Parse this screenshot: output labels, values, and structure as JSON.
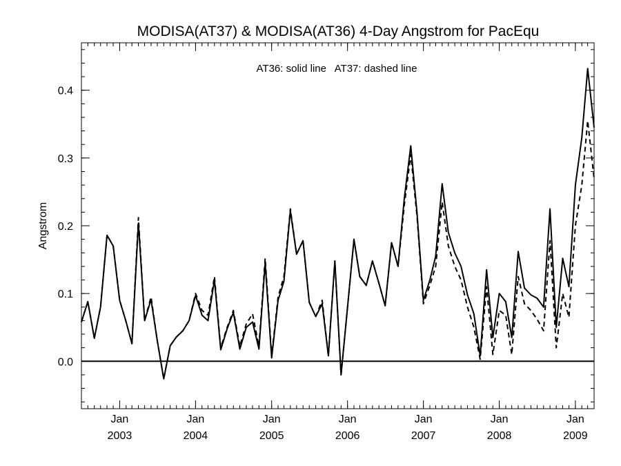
{
  "chart_data": {
    "type": "line",
    "title": "MODISA(AT37) & MODISA(AT36) 4-Day Angstrom for PacEqu",
    "annotation": "AT36: solid line   AT37: dashed line",
    "xlabel": "",
    "ylabel": "Angstrom",
    "xlim": [
      "2002-07-01",
      "2009-04-01"
    ],
    "ylim": [
      -0.07,
      0.47
    ],
    "yticks": [
      0.0,
      0.1,
      0.2,
      0.3,
      0.4
    ],
    "ytick_labels": [
      "0.0",
      "0.1",
      "0.2",
      "0.3",
      "0.4"
    ],
    "xticks": [
      {
        "date": "2003-01-01",
        "month": "Jan",
        "year": "2003"
      },
      {
        "date": "2004-01-01",
        "month": "Jan",
        "year": "2004"
      },
      {
        "date": "2005-01-01",
        "month": "Jan",
        "year": "2005"
      },
      {
        "date": "2006-01-01",
        "month": "Jan",
        "year": "2006"
      },
      {
        "date": "2007-01-01",
        "month": "Jan",
        "year": "2007"
      },
      {
        "date": "2008-01-01",
        "month": "Jan",
        "year": "2008"
      },
      {
        "date": "2009-01-01",
        "month": "Jan",
        "year": "2009"
      }
    ],
    "zero_line": true,
    "grid": false,
    "series": [
      {
        "style": "solid",
        "color": "#000000",
        "points": [
          [
            "2002-07-01",
            0.058
          ],
          [
            "2002-08-01",
            0.088
          ],
          [
            "2002-09-01",
            0.034
          ],
          [
            "2002-10-01",
            0.08
          ],
          [
            "2002-11-01",
            0.186
          ],
          [
            "2002-12-01",
            0.17
          ],
          [
            "2003-01-01",
            0.09
          ],
          [
            "2003-02-01",
            0.058
          ],
          [
            "2003-03-01",
            0.026
          ],
          [
            "2003-04-01",
            0.204
          ],
          [
            "2003-05-01",
            0.06
          ],
          [
            "2003-06-01",
            0.091
          ],
          [
            "2003-07-01",
            0.03
          ],
          [
            "2003-08-01",
            -0.026
          ],
          [
            "2003-09-01",
            0.023
          ],
          [
            "2003-10-01",
            0.036
          ],
          [
            "2003-11-01",
            0.045
          ],
          [
            "2003-12-01",
            0.06
          ],
          [
            "2004-01-01",
            0.097
          ],
          [
            "2004-02-01",
            0.068
          ],
          [
            "2004-03-01",
            0.06
          ],
          [
            "2004-04-01",
            0.12
          ],
          [
            "2004-05-01",
            0.017
          ],
          [
            "2004-06-01",
            0.048
          ],
          [
            "2004-07-01",
            0.072
          ],
          [
            "2004-08-01",
            0.018
          ],
          [
            "2004-09-01",
            0.05
          ],
          [
            "2004-10-01",
            0.058
          ],
          [
            "2004-11-01",
            0.018
          ],
          [
            "2004-12-01",
            0.145
          ],
          [
            "2005-01-01",
            0.005
          ],
          [
            "2005-02-01",
            0.09
          ],
          [
            "2005-03-01",
            0.118
          ],
          [
            "2005-04-01",
            0.222
          ],
          [
            "2005-05-01",
            0.158
          ],
          [
            "2005-06-01",
            0.178
          ],
          [
            "2005-07-01",
            0.087
          ],
          [
            "2005-08-01",
            0.066
          ],
          [
            "2005-09-01",
            0.085
          ],
          [
            "2005-10-01",
            0.008
          ],
          [
            "2005-11-01",
            0.148
          ],
          [
            "2005-12-01",
            -0.02
          ],
          [
            "2006-01-01",
            0.08
          ],
          [
            "2006-02-01",
            0.18
          ],
          [
            "2006-03-01",
            0.125
          ],
          [
            "2006-04-01",
            0.112
          ],
          [
            "2006-05-01",
            0.148
          ],
          [
            "2006-06-01",
            0.115
          ],
          [
            "2006-07-01",
            0.082
          ],
          [
            "2006-08-01",
            0.175
          ],
          [
            "2006-09-01",
            0.14
          ],
          [
            "2006-10-01",
            0.24
          ],
          [
            "2006-11-01",
            0.318
          ],
          [
            "2006-12-01",
            0.22
          ],
          [
            "2007-01-01",
            0.09
          ],
          [
            "2007-02-01",
            0.12
          ],
          [
            "2007-03-01",
            0.155
          ],
          [
            "2007-04-01",
            0.262
          ],
          [
            "2007-05-01",
            0.19
          ],
          [
            "2007-06-01",
            0.16
          ],
          [
            "2007-07-01",
            0.14
          ],
          [
            "2007-08-01",
            0.098
          ],
          [
            "2007-09-01",
            0.07
          ],
          [
            "2007-10-01",
            0.008
          ],
          [
            "2007-11-01",
            0.135
          ],
          [
            "2007-12-01",
            0.035
          ],
          [
            "2008-01-01",
            0.1
          ],
          [
            "2008-02-01",
            0.088
          ],
          [
            "2008-03-01",
            0.035
          ],
          [
            "2008-04-01",
            0.162
          ],
          [
            "2008-05-01",
            0.108
          ],
          [
            "2008-06-01",
            0.098
          ],
          [
            "2008-07-01",
            0.093
          ],
          [
            "2008-08-01",
            0.08
          ],
          [
            "2008-09-01",
            0.225
          ],
          [
            "2008-10-01",
            0.05
          ],
          [
            "2008-11-01",
            0.152
          ],
          [
            "2008-12-01",
            0.11
          ],
          [
            "2009-01-01",
            0.26
          ],
          [
            "2009-02-01",
            0.33
          ],
          [
            "2009-03-01",
            0.432
          ],
          [
            "2009-04-01",
            0.345
          ]
        ]
      },
      {
        "style": "dashed",
        "color": "#000000",
        "points": [
          [
            "2002-07-01",
            0.058
          ],
          [
            "2002-08-01",
            0.088
          ],
          [
            "2002-09-01",
            0.034
          ],
          [
            "2002-10-01",
            0.08
          ],
          [
            "2002-11-01",
            0.186
          ],
          [
            "2002-12-01",
            0.17
          ],
          [
            "2003-01-01",
            0.09
          ],
          [
            "2003-02-01",
            0.058
          ],
          [
            "2003-03-01",
            0.026
          ],
          [
            "2003-04-01",
            0.212
          ],
          [
            "2003-05-01",
            0.06
          ],
          [
            "2003-06-01",
            0.095
          ],
          [
            "2003-07-01",
            0.03
          ],
          [
            "2003-08-01",
            -0.026
          ],
          [
            "2003-09-01",
            0.023
          ],
          [
            "2003-10-01",
            0.036
          ],
          [
            "2003-11-01",
            0.045
          ],
          [
            "2003-12-01",
            0.06
          ],
          [
            "2004-01-01",
            0.1
          ],
          [
            "2004-02-01",
            0.075
          ],
          [
            "2004-03-01",
            0.068
          ],
          [
            "2004-04-01",
            0.125
          ],
          [
            "2004-05-01",
            0.02
          ],
          [
            "2004-06-01",
            0.05
          ],
          [
            "2004-07-01",
            0.075
          ],
          [
            "2004-08-01",
            0.022
          ],
          [
            "2004-09-01",
            0.055
          ],
          [
            "2004-10-01",
            0.07
          ],
          [
            "2004-11-01",
            0.022
          ],
          [
            "2004-12-01",
            0.152
          ],
          [
            "2005-01-01",
            0.008
          ],
          [
            "2005-02-01",
            0.095
          ],
          [
            "2005-03-01",
            0.125
          ],
          [
            "2005-04-01",
            0.225
          ],
          [
            "2005-05-01",
            0.158
          ],
          [
            "2005-06-01",
            0.178
          ],
          [
            "2005-07-01",
            0.087
          ],
          [
            "2005-08-01",
            0.066
          ],
          [
            "2005-09-01",
            0.09
          ],
          [
            "2005-10-01",
            0.008
          ],
          [
            "2005-11-01",
            0.148
          ],
          [
            "2005-12-01",
            -0.02
          ],
          [
            "2006-01-01",
            0.08
          ],
          [
            "2006-02-01",
            0.18
          ],
          [
            "2006-03-01",
            0.125
          ],
          [
            "2006-04-01",
            0.112
          ],
          [
            "2006-05-01",
            0.148
          ],
          [
            "2006-06-01",
            0.115
          ],
          [
            "2006-07-01",
            0.082
          ],
          [
            "2006-08-01",
            0.175
          ],
          [
            "2006-09-01",
            0.14
          ],
          [
            "2006-10-01",
            0.23
          ],
          [
            "2006-11-01",
            0.305
          ],
          [
            "2006-12-01",
            0.215
          ],
          [
            "2007-01-01",
            0.085
          ],
          [
            "2007-02-01",
            0.112
          ],
          [
            "2007-03-01",
            0.14
          ],
          [
            "2007-04-01",
            0.235
          ],
          [
            "2007-05-01",
            0.17
          ],
          [
            "2007-06-01",
            0.14
          ],
          [
            "2007-07-01",
            0.12
          ],
          [
            "2007-08-01",
            0.08
          ],
          [
            "2007-09-01",
            0.05
          ],
          [
            "2007-10-01",
            0.003
          ],
          [
            "2007-11-01",
            0.11
          ],
          [
            "2007-12-01",
            0.01
          ],
          [
            "2008-01-01",
            0.075
          ],
          [
            "2008-02-01",
            0.068
          ],
          [
            "2008-03-01",
            0.01
          ],
          [
            "2008-04-01",
            0.125
          ],
          [
            "2008-05-01",
            0.085
          ],
          [
            "2008-06-01",
            0.075
          ],
          [
            "2008-07-01",
            0.062
          ],
          [
            "2008-08-01",
            0.045
          ],
          [
            "2008-09-01",
            0.178
          ],
          [
            "2008-10-01",
            0.02
          ],
          [
            "2008-11-01",
            0.1
          ],
          [
            "2008-12-01",
            0.065
          ],
          [
            "2009-01-01",
            0.2
          ],
          [
            "2009-02-01",
            0.26
          ],
          [
            "2009-03-01",
            0.355
          ],
          [
            "2009-04-01",
            0.27
          ]
        ]
      }
    ]
  }
}
